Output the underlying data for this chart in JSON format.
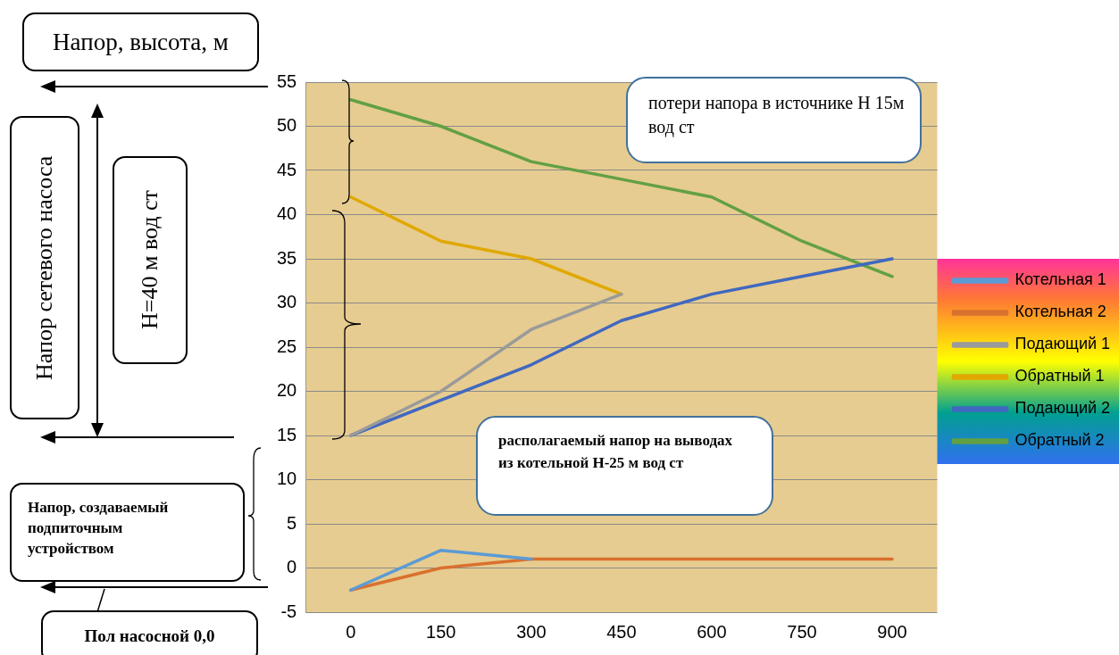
{
  "chart_data": {
    "type": "line",
    "ylabel": "Напор, высота, м",
    "categories": [
      "0",
      "150",
      "300",
      "450",
      "600",
      "750",
      "900"
    ],
    "series": [
      {
        "name": "Котельная 1",
        "color": "#5b9bd5",
        "values": [
          -2.5,
          2,
          1,
          null,
          null,
          null,
          null
        ]
      },
      {
        "name": "Котельная 2",
        "color": "#d9712f",
        "values": [
          -2.5,
          0,
          1,
          1,
          1,
          1,
          1
        ]
      },
      {
        "name": "Подающий 1",
        "color": "#9a9a9a",
        "values": [
          15,
          20,
          27,
          31,
          null,
          null,
          null
        ]
      },
      {
        "name": "Обратный 1",
        "color": "#e0a800",
        "values": [
          42,
          37,
          35,
          31,
          null,
          null,
          null
        ]
      },
      {
        "name": "Подающий 2",
        "color": "#4068c0",
        "values": [
          15,
          19,
          23,
          28,
          31,
          33,
          35
        ]
      },
      {
        "name": "Обратный 2",
        "color": "#62a044",
        "values": [
          53,
          50,
          46,
          44,
          42,
          37,
          33
        ]
      }
    ],
    "ylim": [
      -5,
      55
    ],
    "yticks": [
      -5,
      0,
      5,
      10,
      15,
      20,
      25,
      30,
      35,
      40,
      45,
      50,
      55
    ],
    "grid": "y",
    "legend": "right",
    "marker": "none",
    "line_style": "solid",
    "annotations": [
      "Напор сетевого насоса",
      "H=40 м вод ст",
      "Напор, создаваемый подпиточным устройством",
      "Пол насосной 0,0",
      "потери напора в источнике Н 15м вод ст",
      "располагаемый напор на выводах из котельной Н-25 м вод ст"
    ]
  }
}
